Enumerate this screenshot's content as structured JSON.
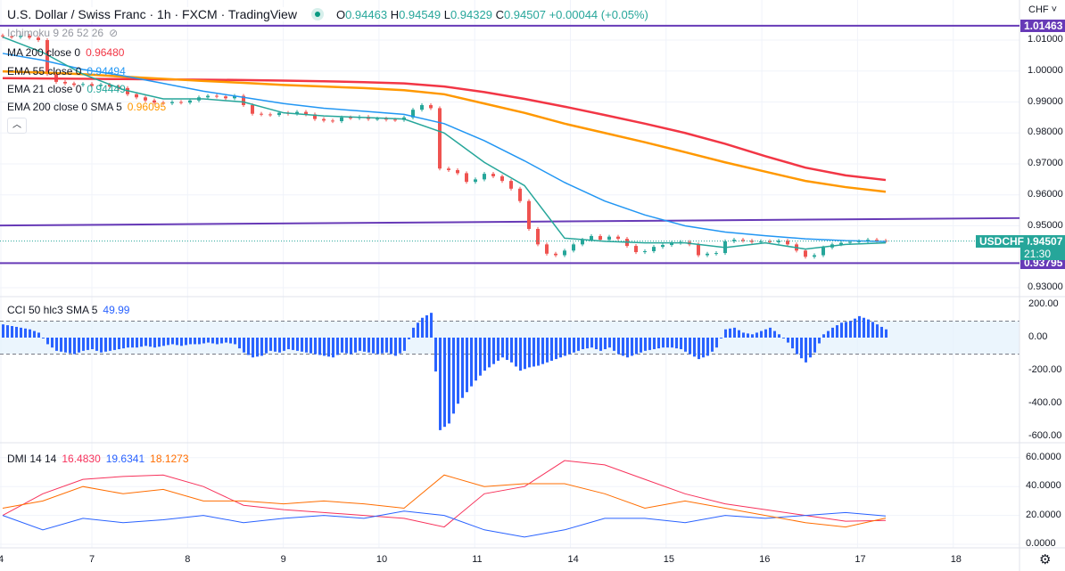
{
  "header": {
    "title": "U.S. Dollar / Swiss Franc · 1h · FXCM · TradingView",
    "open_label": "O",
    "open": "0.94463",
    "high_label": "H",
    "high": "0.94549",
    "low_label": "L",
    "low": "0.94329",
    "close_label": "C",
    "close": "0.94507",
    "change": "+0.00044 (+0.05%)"
  },
  "indicators": {
    "ichimoku": "Ichimoku 9 26 52 26",
    "ma200": {
      "label": "MA 200 close 0",
      "value": "0.96480",
      "color": "#f23645"
    },
    "ema55": {
      "label": "EMA 55 close 0",
      "value": "0.94494",
      "color": "#2196f3"
    },
    "ema21": {
      "label": "EMA 21 close 0",
      "value": "0.94449",
      "color": "#26a69a"
    },
    "ema200sma": {
      "label": "EMA 200 close 0 SMA 5",
      "value": "0.96095",
      "color": "#ff9800"
    },
    "cci": {
      "label": "CCI 50 hlc3 SMA 5",
      "value": "49.99",
      "color": "#2962ff"
    },
    "dmi": {
      "label": "DMI 14 14",
      "plus": "16.4830",
      "minus": "19.6341",
      "adx": "18.1273",
      "plus_color": "#f7325b",
      "minus_color": "#2962ff",
      "adx_color": "#ff6d00"
    }
  },
  "price_axis": {
    "currency": "CHF",
    "ticks": [
      "1.01000",
      "1.00000",
      "0.99000",
      "0.98000",
      "0.97000",
      "0.96000",
      "0.95000",
      "0.93000"
    ],
    "tick_values": [
      1.01,
      1.0,
      0.99,
      0.98,
      0.97,
      0.96,
      0.95,
      0.93
    ],
    "line_tags": [
      {
        "text": "1.01463",
        "value": 1.01463
      },
      {
        "text": "0.93795",
        "value": 0.93795
      }
    ],
    "symbol_tag": "USDCHF",
    "last_price": "0.94507",
    "countdown": "21:30",
    "last_value": 0.94507
  },
  "cci_axis": {
    "ticks": [
      "200.00",
      "0.00",
      "-200.00",
      "-400.00",
      "-600.00"
    ],
    "tick_values": [
      200,
      0,
      -200,
      -400,
      -600
    ],
    "band": [
      100,
      -100
    ]
  },
  "dmi_axis": {
    "ticks": [
      "60.0000",
      "40.0000",
      "20.0000",
      "0.0000"
    ],
    "tick_values": [
      60,
      40,
      20,
      0
    ]
  },
  "time_axis": {
    "labels": [
      "4",
      "7",
      "8",
      "9",
      "10",
      "11",
      "14",
      "15",
      "16",
      "17",
      "18"
    ]
  },
  "chart_data": {
    "type": "candlestick",
    "symbol": "USDCHF",
    "timeframe": "1h",
    "x_range": [
      "4",
      "17"
    ],
    "price_ylim": [
      0.925,
      1.02
    ],
    "closes": [
      1.0112,
      1.011,
      1.0114,
      1.0108,
      1.01,
      0.999,
      0.9965,
      0.996,
      0.9955,
      0.9958,
      0.9952,
      0.9956,
      0.995,
      0.9945,
      0.9925,
      0.9915,
      0.9905,
      0.9898,
      0.9896,
      0.99,
      0.9898,
      0.9905,
      0.9915,
      0.992,
      0.9918,
      0.9912,
      0.992,
      0.989,
      0.9862,
      0.986,
      0.9858,
      0.9865,
      0.9862,
      0.9868,
      0.986,
      0.9845,
      0.984,
      0.9838,
      0.985,
      0.9848,
      0.9852,
      0.9845,
      0.9846,
      0.9843,
      0.9842,
      0.985,
      0.9875,
      0.989,
      0.988,
      0.9685,
      0.968,
      0.967,
      0.9642,
      0.965,
      0.9668,
      0.966,
      0.9645,
      0.962,
      0.958,
      0.949,
      0.944,
      0.941,
      0.9405,
      0.942,
      0.944,
      0.9455,
      0.9467,
      0.9455,
      0.9465,
      0.9458,
      0.9435,
      0.9415,
      0.9418,
      0.9432,
      0.9438,
      0.9445,
      0.9448,
      0.944,
      0.9405,
      0.941,
      0.9412,
      0.945,
      0.9455,
      0.9452,
      0.9448,
      0.945,
      0.9447,
      0.9452,
      0.944,
      0.942,
      0.94,
      0.9405,
      0.943,
      0.944,
      0.9445,
      0.9448,
      0.945,
      0.9455,
      0.9452,
      0.94507
    ],
    "lines": {
      "ma200": [
        0.9977,
        0.9976,
        0.9975,
        0.9974,
        0.9973,
        0.9972,
        0.9971,
        0.9969,
        0.9967,
        0.9964,
        0.996,
        0.995,
        0.9932,
        0.991,
        0.9885,
        0.9858,
        0.983,
        0.98,
        0.9765,
        0.9725,
        0.9688,
        0.9663,
        0.9648
      ],
      "ema200sma": [
        0.9999,
        0.9995,
        0.999,
        0.9982,
        0.9975,
        0.9968,
        0.9962,
        0.9955,
        0.995,
        0.9945,
        0.9938,
        0.9925,
        0.9895,
        0.9865,
        0.983,
        0.98,
        0.977,
        0.9738,
        0.9705,
        0.9675,
        0.9645,
        0.9625,
        0.961
      ],
      "ema55": [
        1.0057,
        1.0035,
        1.0005,
        0.9985,
        0.996,
        0.9935,
        0.9915,
        0.9895,
        0.988,
        0.987,
        0.986,
        0.983,
        0.9775,
        0.971,
        0.964,
        0.958,
        0.9535,
        0.95,
        0.948,
        0.9468,
        0.9458,
        0.9452,
        0.94494
      ],
      "ema21": [
        1.011,
        1.006,
        0.999,
        0.994,
        0.991,
        0.991,
        0.99,
        0.9865,
        0.9855,
        0.985,
        0.9845,
        0.98,
        0.9705,
        0.963,
        0.946,
        0.945,
        0.9445,
        0.9445,
        0.943,
        0.9445,
        0.9425,
        0.944,
        0.94449
      ]
    },
    "horizontal_lines": [
      1.01463,
      0.93795
    ],
    "trend_line": [
      0.9501,
      0.9525
    ],
    "cci": {
      "ylim": [
        -640,
        230
      ],
      "values": [
        80,
        70,
        60,
        50,
        30,
        -40,
        -80,
        -90,
        -100,
        -80,
        -70,
        -90,
        -80,
        -70,
        -60,
        -60,
        -50,
        -60,
        -50,
        -40,
        -50,
        -40,
        -40,
        -30,
        -40,
        -30,
        -40,
        -90,
        -120,
        -110,
        -80,
        -90,
        -70,
        -80,
        -90,
        -100,
        -110,
        -120,
        -90,
        -100,
        -80,
        -90,
        -100,
        -90,
        -110,
        -80,
        60,
        120,
        150,
        -560,
        -520,
        -400,
        -330,
        -260,
        -200,
        -160,
        -120,
        -150,
        -200,
        -180,
        -170,
        -150,
        -130,
        -110,
        -90,
        -70,
        -60,
        -80,
        -60,
        -100,
        -120,
        -100,
        -80,
        -70,
        -60,
        -60,
        -70,
        -100,
        -130,
        -110,
        -60,
        50,
        60,
        30,
        20,
        40,
        60,
        20,
        -30,
        -100,
        -150,
        -90,
        20,
        60,
        90,
        100,
        130,
        110,
        80,
        50
      ]
    },
    "dmi": {
      "ylim": [
        -1,
        66
      ],
      "plus": [
        20,
        35,
        45,
        47,
        48,
        40,
        27,
        24,
        22,
        20,
        18,
        12,
        35,
        40,
        58,
        55,
        45,
        35,
        28,
        24,
        20,
        16,
        16.48
      ],
      "minus": [
        20,
        10,
        18,
        15,
        17,
        20,
        15,
        18,
        20,
        18,
        23,
        20,
        10,
        5,
        10,
        18,
        18,
        15,
        20,
        18,
        20,
        22,
        19.63
      ],
      "adx": [
        25,
        30,
        40,
        35,
        38,
        30,
        30,
        28,
        30,
        28,
        25,
        48,
        40,
        42,
        42,
        35,
        25,
        30,
        25,
        20,
        15,
        12,
        18.13
      ]
    }
  }
}
